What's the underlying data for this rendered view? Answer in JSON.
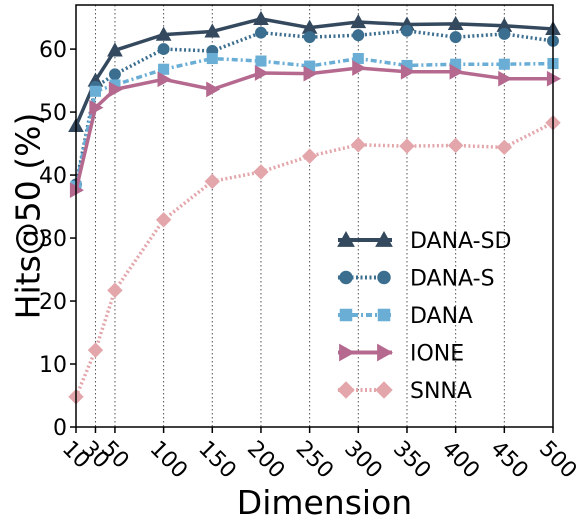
{
  "chart_data": {
    "type": "line",
    "xlabel": "Dimension",
    "ylabel": "Hits@50 (%)",
    "x": [
      10,
      30,
      50,
      100,
      150,
      200,
      250,
      300,
      350,
      400,
      450,
      500
    ],
    "x_tick_labels": [
      "10",
      "30",
      "50",
      "100",
      "150",
      "200",
      "250",
      "300",
      "350",
      "400",
      "450",
      "500"
    ],
    "xlim": [
      10,
      500
    ],
    "ylim": [
      0,
      67
    ],
    "yticks": [
      0,
      10,
      20,
      30,
      40,
      50,
      60
    ],
    "grid": "vertical dotted lines at x ticks",
    "legend_position": "center-right",
    "series": [
      {
        "name": "DANA-SD",
        "values": [
          47.8,
          55.0,
          59.8,
          62.3,
          62.8,
          64.8,
          63.4,
          64.3,
          63.9,
          64.0,
          63.7,
          63.2
        ],
        "color": "#34495e",
        "marker": "triangle",
        "dash": "solid"
      },
      {
        "name": "DANA-S",
        "values": [
          38.5,
          54.0,
          56.0,
          60.0,
          59.7,
          62.6,
          61.9,
          62.2,
          62.9,
          61.9,
          62.4,
          61.3
        ],
        "color": "#3b6e8f",
        "marker": "circle",
        "dash": "dotted"
      },
      {
        "name": "DANA",
        "values": [
          38.2,
          53.3,
          54.3,
          56.8,
          58.5,
          58.1,
          57.3,
          58.5,
          57.4,
          57.6,
          57.6,
          57.7
        ],
        "color": "#6aaed6",
        "marker": "square",
        "dash": "dashdot"
      },
      {
        "name": "IONE",
        "values": [
          37.6,
          50.7,
          53.6,
          55.2,
          53.6,
          56.2,
          56.1,
          57.0,
          56.4,
          56.4,
          55.3,
          55.3
        ],
        "color": "#b5698f",
        "marker": "triangle-right",
        "dash": "solid"
      },
      {
        "name": "SNNA",
        "values": [
          4.8,
          12.2,
          21.7,
          32.9,
          39.0,
          40.5,
          43.0,
          44.8,
          44.6,
          44.7,
          44.4,
          48.3
        ],
        "color": "#e3a6ab",
        "marker": "diamond",
        "dash": "dotted"
      }
    ]
  }
}
